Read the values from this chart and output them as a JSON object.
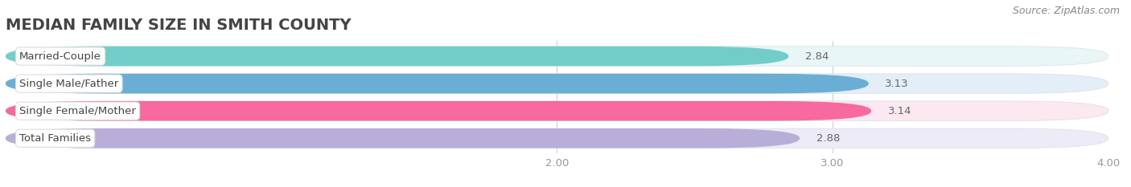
{
  "title": "MEDIAN FAMILY SIZE IN SMITH COUNTY",
  "source": "Source: ZipAtlas.com",
  "categories": [
    "Married-Couple",
    "Single Male/Father",
    "Single Female/Mother",
    "Total Families"
  ],
  "values": [
    2.84,
    3.13,
    3.14,
    2.88
  ],
  "bar_colors": [
    "#72cdc9",
    "#6aaed6",
    "#f7699f",
    "#b8aed8"
  ],
  "bar_bg_colors": [
    "#e8f6f6",
    "#e4eef8",
    "#fce8f1",
    "#eeebf8"
  ],
  "xlim_min": 0.0,
  "xlim_max": 4.0,
  "data_min": 2.0,
  "xticks": [
    2.0,
    3.0,
    4.0
  ],
  "xtick_labels": [
    "2.00",
    "3.00",
    "4.00"
  ],
  "background_color": "#ffffff",
  "title_fontsize": 14,
  "label_fontsize": 9.5,
  "value_fontsize": 9.5,
  "source_fontsize": 9
}
